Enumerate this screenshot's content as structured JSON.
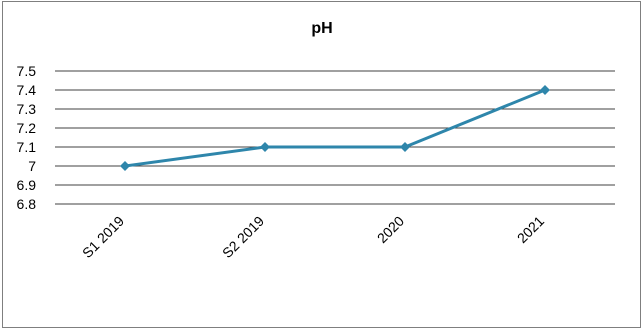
{
  "chart_data": {
    "type": "line",
    "title": "pH",
    "xlabel": "",
    "ylabel": "",
    "categories": [
      "S1 2019",
      "S2 2019",
      "2020",
      "2021"
    ],
    "series": [
      {
        "values": [
          7.0,
          7.1,
          7.1,
          7.4
        ],
        "color": "#2e86ab"
      }
    ],
    "ylim": [
      6.8,
      7.5
    ],
    "yticks": [
      "7.5",
      "7.4",
      "7.3",
      "7.2",
      "7.1",
      "7",
      "6.9",
      "6.8"
    ],
    "grid": true,
    "legend": "none"
  }
}
